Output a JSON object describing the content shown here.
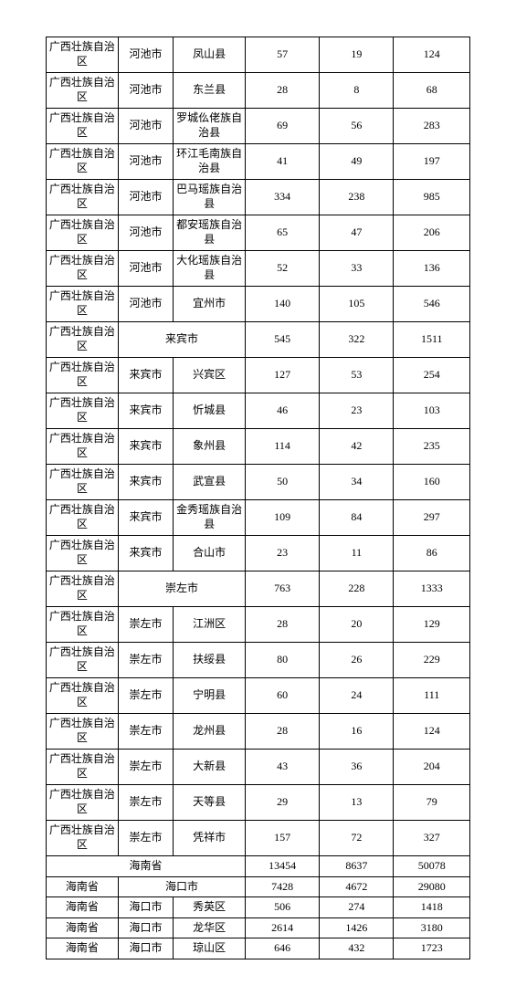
{
  "rows": [
    {
      "type": "6",
      "h": "tall",
      "c": [
        "广西壮族自治区",
        "河池市",
        "凤山县",
        "57",
        "19",
        "124"
      ]
    },
    {
      "type": "6",
      "h": "tall",
      "c": [
        "广西壮族自治区",
        "河池市",
        "东兰县",
        "28",
        "8",
        "68"
      ]
    },
    {
      "type": "6",
      "h": "tall",
      "c": [
        "广西壮族自治区",
        "河池市",
        "罗城仫佬族自治县",
        "69",
        "56",
        "283"
      ]
    },
    {
      "type": "6",
      "h": "tall",
      "c": [
        "广西壮族自治区",
        "河池市",
        "环江毛南族自治县",
        "41",
        "49",
        "197"
      ]
    },
    {
      "type": "6",
      "h": "tall",
      "c": [
        "广西壮族自治区",
        "河池市",
        "巴马瑶族自治县",
        "334",
        "238",
        "985"
      ]
    },
    {
      "type": "6",
      "h": "tall",
      "c": [
        "广西壮族自治区",
        "河池市",
        "都安瑶族自治县",
        "65",
        "47",
        "206"
      ]
    },
    {
      "type": "6",
      "h": "tall",
      "c": [
        "广西壮族自治区",
        "河池市",
        "大化瑶族自治县",
        "52",
        "33",
        "136"
      ]
    },
    {
      "type": "6",
      "h": "tall",
      "c": [
        "广西壮族自治区",
        "河池市",
        "宜州市",
        "140",
        "105",
        "546"
      ]
    },
    {
      "type": "5",
      "h": "tall",
      "c": [
        "广西壮族自治区",
        "来宾市",
        "545",
        "322",
        "1511"
      ]
    },
    {
      "type": "6",
      "h": "tall",
      "c": [
        "广西壮族自治区",
        "来宾市",
        "兴宾区",
        "127",
        "53",
        "254"
      ]
    },
    {
      "type": "6",
      "h": "tall",
      "c": [
        "广西壮族自治区",
        "来宾市",
        "忻城县",
        "46",
        "23",
        "103"
      ]
    },
    {
      "type": "6",
      "h": "tall",
      "c": [
        "广西壮族自治区",
        "来宾市",
        "象州县",
        "114",
        "42",
        "235"
      ]
    },
    {
      "type": "6",
      "h": "tall",
      "c": [
        "广西壮族自治区",
        "来宾市",
        "武宣县",
        "50",
        "34",
        "160"
      ]
    },
    {
      "type": "6",
      "h": "tall",
      "c": [
        "广西壮族自治区",
        "来宾市",
        "金秀瑶族自治县",
        "109",
        "84",
        "297"
      ]
    },
    {
      "type": "6",
      "h": "tall",
      "c": [
        "广西壮族自治区",
        "来宾市",
        "合山市",
        "23",
        "11",
        "86"
      ]
    },
    {
      "type": "5",
      "h": "tall",
      "c": [
        "广西壮族自治区",
        "崇左市",
        "763",
        "228",
        "1333"
      ]
    },
    {
      "type": "6",
      "h": "tall",
      "c": [
        "广西壮族自治区",
        "崇左市",
        "江洲区",
        "28",
        "20",
        "129"
      ]
    },
    {
      "type": "6",
      "h": "tall",
      "c": [
        "广西壮族自治区",
        "崇左市",
        "扶绥县",
        "80",
        "26",
        "229"
      ]
    },
    {
      "type": "6",
      "h": "tall",
      "c": [
        "广西壮族自治区",
        "崇左市",
        "宁明县",
        "60",
        "24",
        "111"
      ]
    },
    {
      "type": "6",
      "h": "tall",
      "c": [
        "广西壮族自治区",
        "崇左市",
        "龙州县",
        "28",
        "16",
        "124"
      ]
    },
    {
      "type": "6",
      "h": "tall",
      "c": [
        "广西壮族自治区",
        "崇左市",
        "大新县",
        "43",
        "36",
        "204"
      ]
    },
    {
      "type": "6",
      "h": "tall",
      "c": [
        "广西壮族自治区",
        "崇左市",
        "天等县",
        "29",
        "13",
        "79"
      ]
    },
    {
      "type": "6",
      "h": "tall",
      "c": [
        "广西壮族自治区",
        "崇左市",
        "凭祥市",
        "157",
        "72",
        "327"
      ]
    },
    {
      "type": "4",
      "h": "short",
      "c": [
        "海南省",
        "13454",
        "8637",
        "50078"
      ]
    },
    {
      "type": "5",
      "h": "short",
      "c": [
        "海南省",
        "海口市",
        "7428",
        "4672",
        "29080"
      ]
    },
    {
      "type": "6",
      "h": "short",
      "c": [
        "海南省",
        "海口市",
        "秀英区",
        "506",
        "274",
        "1418"
      ]
    },
    {
      "type": "6",
      "h": "short",
      "c": [
        "海南省",
        "海口市",
        "龙华区",
        "2614",
        "1426",
        "3180"
      ]
    },
    {
      "type": "6",
      "h": "short",
      "c": [
        "海南省",
        "海口市",
        "琼山区",
        "646",
        "432",
        "1723"
      ]
    }
  ]
}
